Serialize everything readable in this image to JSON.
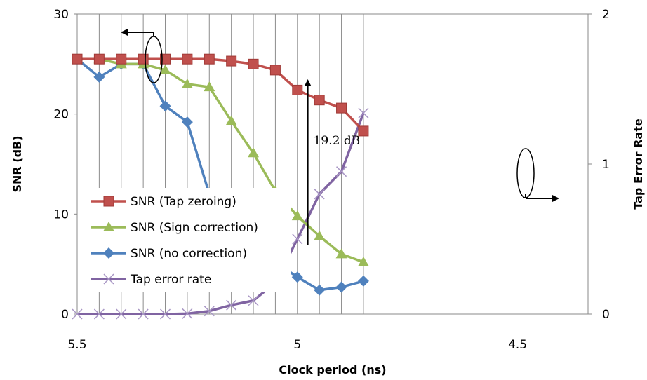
{
  "chart_data": {
    "type": "line",
    "title": "",
    "xlabel": "Clock period (ns)",
    "ylabel": "SNR (dB)",
    "y2label": "Tap Error Rate",
    "x_reversed": true,
    "xlim": [
      5.5,
      4.34
    ],
    "ylim": [
      0,
      30
    ],
    "y2lim": [
      0,
      2
    ],
    "x_ticks": [
      "5.5",
      "5",
      "4.5"
    ],
    "y_ticks": [
      "0",
      "10",
      "20",
      "30"
    ],
    "y2_ticks": [
      "0",
      "1",
      "2"
    ],
    "grid": "vertical",
    "legend_position": "bottom-left",
    "x": [
      5.5,
      5.45,
      5.4,
      5.35,
      5.3,
      5.25,
      5.2,
      5.15,
      5.1,
      5.05,
      5.0,
      4.95,
      4.9,
      4.85
    ],
    "series": [
      {
        "name": "SNR (Tap zeroing)",
        "axis": "left",
        "color": "#c0504d",
        "marker": "square",
        "values": [
          25.5,
          25.5,
          25.5,
          25.5,
          25.5,
          25.5,
          25.5,
          25.3,
          25.0,
          24.4,
          22.4,
          21.4,
          20.6,
          18.3
        ]
      },
      {
        "name": "SNR (Sign correction)",
        "axis": "left",
        "color": "#9bbb59",
        "marker": "triangle",
        "values": [
          25.5,
          25.5,
          25.0,
          25.0,
          24.4,
          23.0,
          22.7,
          19.3,
          16.1,
          12.3,
          9.8,
          7.8,
          6.0,
          5.2
        ]
      },
      {
        "name": "SNR (no correction)",
        "axis": "left",
        "color": "#4f81bd",
        "marker": "diamond",
        "values": [
          25.5,
          23.7,
          25.0,
          25.0,
          20.8,
          19.2,
          12.0,
          8.6,
          8.3,
          5.2,
          3.7,
          2.4,
          2.7,
          3.3
        ]
      },
      {
        "name": "Tap error rate",
        "axis": "right",
        "color": "#8064a2",
        "marker": "x",
        "values": [
          0,
          0,
          0,
          0,
          0,
          0.003,
          0.02,
          0.06,
          0.09,
          0.21,
          0.5,
          0.8,
          0.95,
          1.34
        ]
      }
    ],
    "annotations": [
      {
        "text": "19.2 dB",
        "at_x": 4.97,
        "from_y": 6.9,
        "to_y": 23.9
      }
    ]
  }
}
